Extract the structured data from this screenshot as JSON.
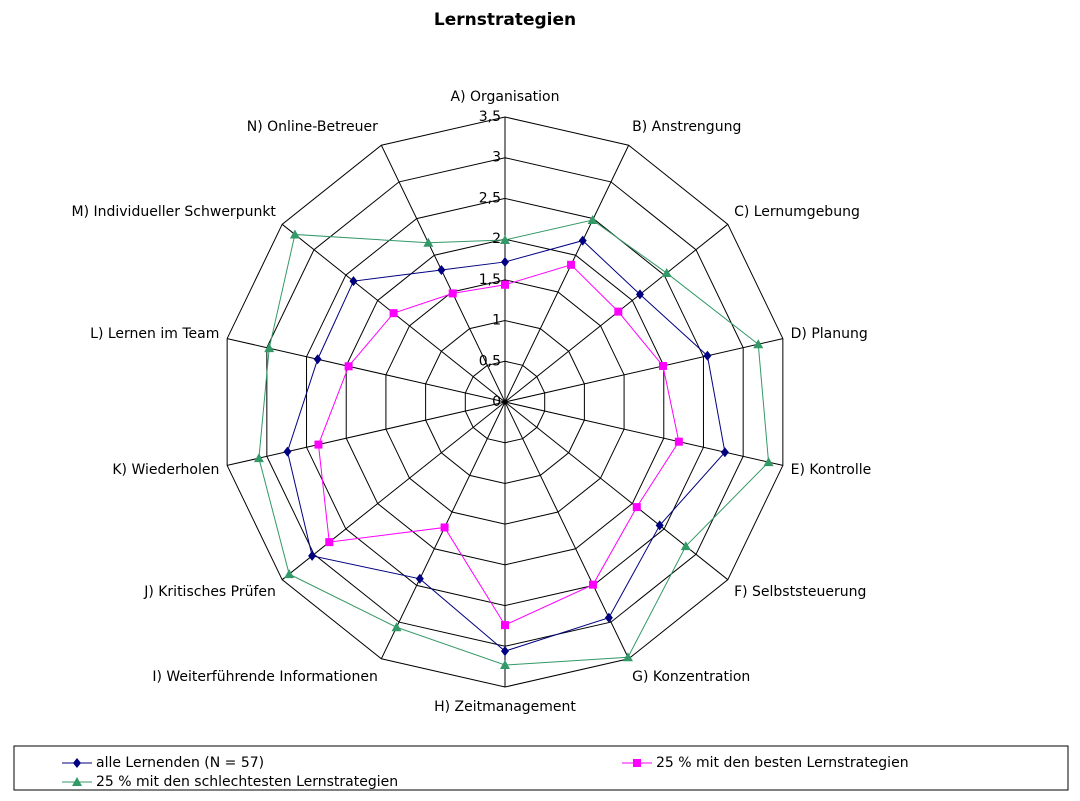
{
  "chart_data": {
    "type": "radar",
    "title": "Lernstrategien",
    "categories": [
      "A) Organisation",
      "B) Anstrengung",
      "C) Lernumgebung",
      "D) Planung",
      "E) Kontrolle",
      "F) Selbststeuerung",
      "G) Konzentration",
      "H) Zeitmanagement",
      "I) Weiterführende Informationen",
      "J) Kritisches Prüfen",
      "K) Wiederholen",
      "L) Lernen im Team",
      "M) Individueller Schwerpunkt",
      "N) Online-Betreuer"
    ],
    "series": [
      {
        "name": "alle Lernenden (N = 57)",
        "color": "#000080",
        "marker": "diamond",
        "values": [
          1.72,
          2.2,
          2.12,
          2.55,
          2.77,
          2.43,
          2.94,
          3.06,
          2.41,
          3.03,
          2.74,
          2.36,
          2.38,
          1.8
        ]
      },
      {
        "name": "25 % mit den besten Lernstrategien",
        "color": "#ff00ff",
        "marker": "square",
        "values": [
          1.44,
          1.87,
          1.78,
          1.99,
          2.19,
          2.07,
          2.49,
          2.74,
          1.71,
          2.76,
          2.35,
          1.97,
          1.75,
          1.48
        ]
      },
      {
        "name": "25 % mit den schlechtesten Lernstrategien",
        "color": "#339966",
        "marker": "triangle",
        "values": [
          1.99,
          2.48,
          2.54,
          3.19,
          3.32,
          2.84,
          3.48,
          3.23,
          3.07,
          3.39,
          3.1,
          2.97,
          3.3,
          2.17
        ]
      }
    ],
    "ylim": [
      0,
      3.5
    ],
    "yticks": [
      0,
      {
        "value": 0.5,
        "label": "0,5"
      },
      1,
      {
        "value": 1.5,
        "label": "1,5"
      },
      2,
      {
        "value": 2.5,
        "label": "2,5"
      },
      3,
      {
        "value": 3.5,
        "label": "3,5"
      }
    ],
    "grid": true,
    "legend": "bottom"
  }
}
